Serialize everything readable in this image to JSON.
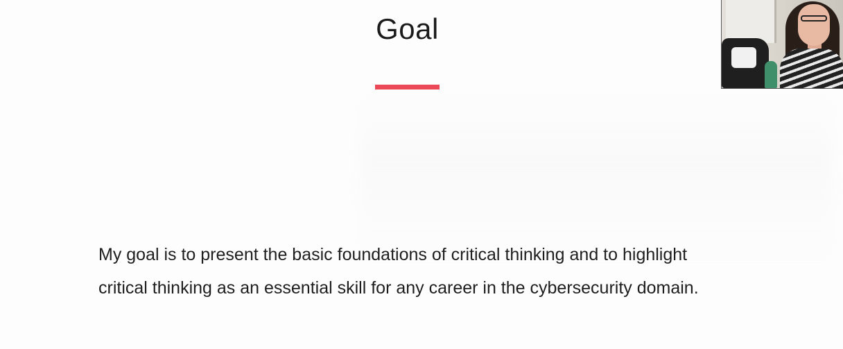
{
  "slide": {
    "title": "Goal",
    "accent_color": "#ea4a57",
    "body_lines": [
      "My goal is to present the basic foundations of critical thinking and to highlight",
      "critical thinking as an essential skill for any career in the cybersecurity domain."
    ]
  },
  "webcam": {
    "present": true
  }
}
